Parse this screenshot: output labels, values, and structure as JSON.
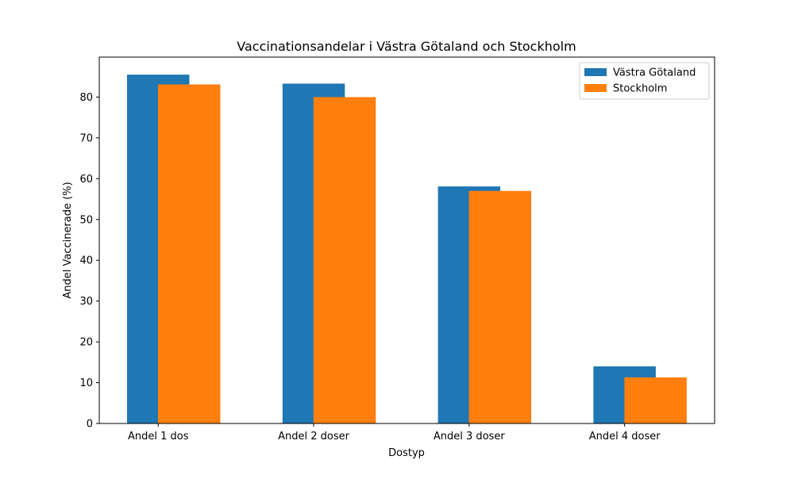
{
  "chart_data": {
    "type": "bar",
    "title": "Vaccinationsandelar i Västra Götaland och Stockholm",
    "xlabel": "Dostyp",
    "ylabel": "Andel Vaccinerade (%)",
    "categories": [
      "Andel 1 dos",
      "Andel 2 doser",
      "Andel 3 doser",
      "Andel 4 doser"
    ],
    "series": [
      {
        "name": "Västra Götaland",
        "values": [
          85.5,
          83.3,
          58.1,
          14.0
        ],
        "color": "#1f77b4"
      },
      {
        "name": "Stockholm",
        "values": [
          83.1,
          80.0,
          57.0,
          11.3
        ],
        "color": "#ff7f0e"
      }
    ],
    "ylim": [
      0,
      89.8
    ],
    "yticks": [
      0,
      10,
      20,
      30,
      40,
      50,
      60,
      70,
      80
    ],
    "grid": false,
    "legend_position": "top-right"
  }
}
